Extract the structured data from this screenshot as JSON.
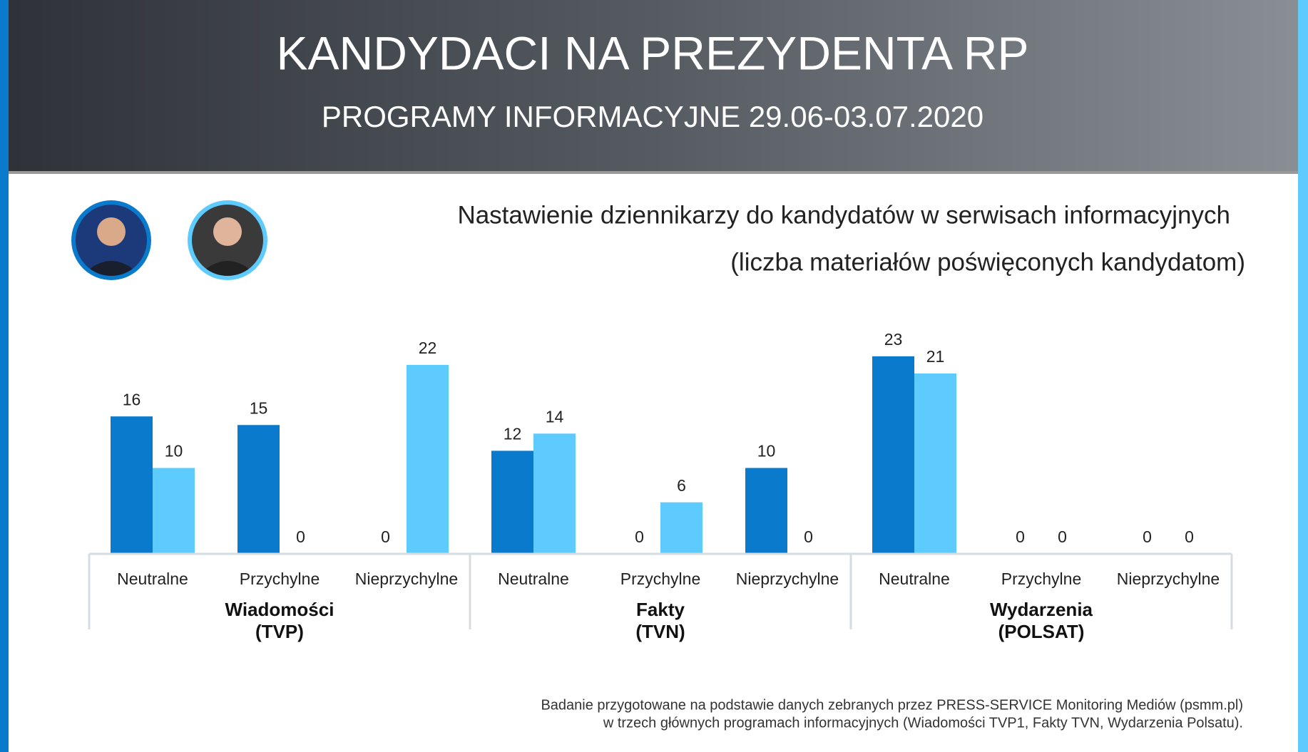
{
  "header": {
    "title": "KANDYDACI NA PREZYDENTA RP",
    "subtitle": "PROGRAMY INFORMACYJNE 29.06-03.07.2020"
  },
  "chart_data": {
    "type": "bar",
    "title": "Nastawienie dziennikarzy do kandydatów w serwisach informacyjnych",
    "subtitle": "(liczba materiałów  poświęconych kandydatom)",
    "categories": [
      "Neutralne",
      "Przychylne",
      "Nieprzychylne",
      "Neutralne",
      "Przychylne",
      "Nieprzychylne",
      "Neutralne",
      "Przychylne",
      "Nieprzychylne"
    ],
    "groups": [
      {
        "name": "Wiadomości",
        "channel": "(TVP)"
      },
      {
        "name": "Fakty",
        "channel": "(TVN)"
      },
      {
        "name": "Wydarzenia",
        "channel": "(POLSAT)"
      }
    ],
    "series": [
      {
        "color": "#0a7acc",
        "values": [
          16,
          15,
          0,
          12,
          0,
          10,
          23,
          0,
          0
        ]
      },
      {
        "color": "#5ecbff",
        "values": [
          10,
          0,
          22,
          14,
          6,
          0,
          21,
          0,
          0
        ]
      }
    ]
  },
  "footer": [
    "Badanie przygotowane na podstawie danych zebranych przez PRESS-SERVICE Monitoring Mediów (psmm.pl)",
    "w trzech głównych programach informacyjnych (Wiadomości TVP1, Fakty TVN, Wydarzenia Polsatu)."
  ]
}
